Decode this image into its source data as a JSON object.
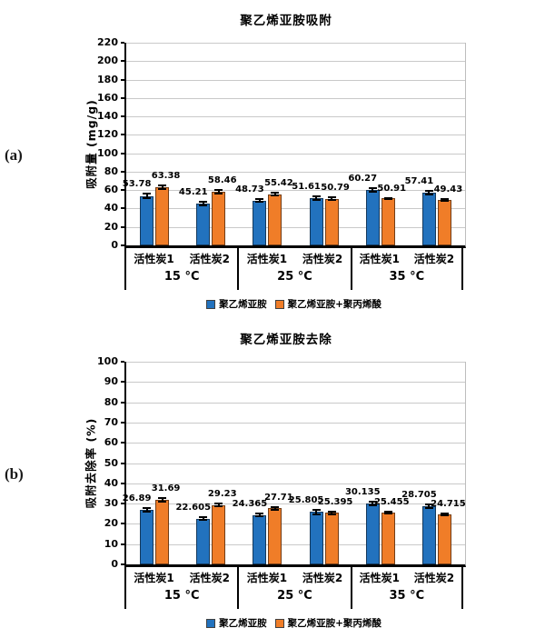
{
  "figure": {
    "panel_a_label": "(a)",
    "panel_b_label": "(b)"
  },
  "colors": {
    "series1": "#2272BE",
    "series2": "#F07D28",
    "gridline": "#c9c9c9",
    "axis": "#000000"
  },
  "chart_data": [
    {
      "id": "a",
      "type": "bar",
      "title": "聚乙烯亚胺吸附",
      "ylabel": "吸附量 (mg/g)",
      "ylim": [
        0,
        220
      ],
      "ytick_step": 20,
      "yticks": [
        220,
        200,
        180,
        160,
        140,
        120,
        100,
        80,
        60,
        40,
        20,
        0
      ],
      "grid": true,
      "legend_position": "bottom",
      "groups": [
        {
          "label": "15 °C",
          "categories": [
            "活性炭1",
            "活性炭2"
          ]
        },
        {
          "label": "25 °C",
          "categories": [
            "活性炭1",
            "活性炭2"
          ]
        },
        {
          "label": "35 °C",
          "categories": [
            "活性炭1",
            "活性炭2"
          ]
        }
      ],
      "series": [
        {
          "name": "聚乙烯亚胺",
          "values": [
            53.78,
            45.21,
            48.73,
            51.61,
            60.27,
            57.41
          ],
          "errors": [
            3.2,
            2.8,
            2.5,
            3.0,
            3.0,
            3.0
          ]
        },
        {
          "name": "聚乙烯亚胺+聚丙烯酸",
          "values": [
            63.38,
            58.46,
            55.42,
            50.79,
            50.91,
            49.43
          ],
          "errors": [
            3.0,
            2.8,
            2.6,
            2.0,
            1.6,
            1.8
          ]
        }
      ]
    },
    {
      "id": "b",
      "type": "bar",
      "title": "聚乙烯亚胺去除",
      "ylabel": "吸附去除率 (%)",
      "ylim": [
        0,
        100
      ],
      "ytick_step": 10,
      "yticks": [
        100,
        90,
        80,
        70,
        60,
        50,
        40,
        30,
        20,
        10,
        0
      ],
      "grid": true,
      "legend_position": "bottom",
      "groups": [
        {
          "label": "15 °C",
          "categories": [
            "活性炭1",
            "活性炭2"
          ]
        },
        {
          "label": "25 °C",
          "categories": [
            "活性炭1",
            "活性炭2"
          ]
        },
        {
          "label": "35 °C",
          "categories": [
            "活性炭1",
            "活性炭2"
          ]
        }
      ],
      "series": [
        {
          "name": "聚乙烯亚胺",
          "values": [
            26.89,
            22.605,
            24.365,
            25.805,
            30.135,
            28.705
          ],
          "errors": [
            1.4,
            1.3,
            1.2,
            1.5,
            1.4,
            1.4
          ]
        },
        {
          "name": "聚乙烯亚胺+聚丙烯酸",
          "values": [
            31.69,
            29.23,
            27.71,
            25.395,
            25.455,
            24.715
          ],
          "errors": [
            1.4,
            1.2,
            1.2,
            1.0,
            1.0,
            1.0
          ]
        }
      ]
    }
  ]
}
